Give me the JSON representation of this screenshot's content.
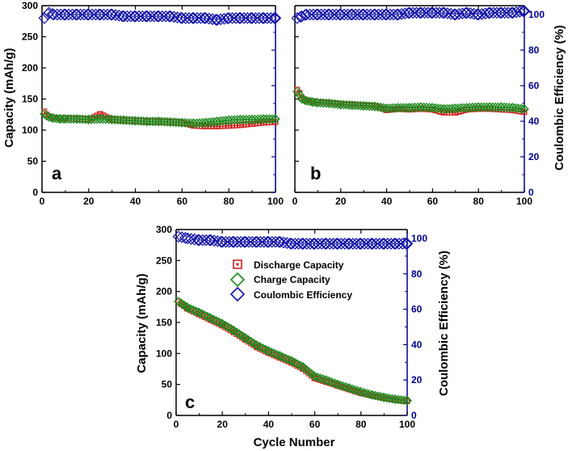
{
  "chart_data": [
    {
      "type": "scatter",
      "panel": "a",
      "xlabel": "",
      "ylabel": "Capacity (mAh/g)",
      "y2label": "",
      "xlim": [
        0,
        100
      ],
      "ylim": [
        0,
        300
      ],
      "y2lim": [
        0,
        105
      ],
      "xticks": [
        0,
        20,
        40,
        60,
        80,
        100
      ],
      "yticks": [
        0,
        50,
        100,
        150,
        200,
        250,
        300
      ],
      "y2ticks": [],
      "series": [
        {
          "name": "Discharge Capacity",
          "axis": "left",
          "color": "#d42020",
          "x": [
            1,
            2,
            3,
            5,
            8,
            10,
            15,
            20,
            25,
            30,
            35,
            40,
            45,
            50,
            55,
            60,
            65,
            70,
            75,
            80,
            85,
            90,
            95,
            100
          ],
          "values": [
            130,
            125,
            122,
            120,
            119,
            119,
            118,
            117,
            126,
            117,
            116,
            115,
            114,
            114,
            113,
            112,
            107,
            106,
            106,
            107,
            108,
            110,
            112,
            113
          ]
        },
        {
          "name": "Charge Capacity",
          "axis": "left",
          "color": "#1e8a1e",
          "x": [
            1,
            2,
            3,
            5,
            8,
            10,
            15,
            20,
            25,
            30,
            35,
            40,
            45,
            50,
            55,
            60,
            65,
            70,
            75,
            80,
            85,
            90,
            95,
            100
          ],
          "values": [
            126,
            123,
            121,
            119,
            118,
            118,
            118,
            117,
            118,
            117,
            116,
            115,
            114,
            114,
            113,
            112,
            111,
            112,
            114,
            116,
            117,
            117,
            118,
            118
          ]
        },
        {
          "name": "Coulombic Efficiency",
          "axis": "right",
          "color": "#1414a8",
          "x": [
            1,
            3,
            5,
            10,
            15,
            20,
            25,
            30,
            35,
            40,
            45,
            50,
            55,
            60,
            65,
            70,
            75,
            80,
            85,
            90,
            95,
            100
          ],
          "values": [
            98,
            101,
            100,
            100,
            100,
            100,
            100,
            100,
            99,
            99,
            99,
            99,
            99,
            98,
            98,
            98,
            97,
            98,
            98,
            98,
            98,
            98
          ]
        }
      ]
    },
    {
      "type": "scatter",
      "panel": "b",
      "xlabel": "",
      "ylabel": "",
      "y2label": "Coulombic Efficiency (%)",
      "xlim": [
        0,
        100
      ],
      "ylim": [
        0,
        300
      ],
      "y2lim": [
        0,
        105
      ],
      "xticks": [
        0,
        20,
        40,
        60,
        80,
        100
      ],
      "yticks": [],
      "y2ticks": [
        0,
        20,
        40,
        60,
        80,
        100
      ],
      "series": [
        {
          "name": "Discharge Capacity",
          "axis": "left",
          "color": "#d42020",
          "x": [
            1,
            2,
            3,
            5,
            8,
            10,
            15,
            20,
            25,
            30,
            35,
            40,
            45,
            50,
            55,
            60,
            65,
            70,
            75,
            80,
            85,
            90,
            95,
            100
          ],
          "values": [
            165,
            160,
            152,
            148,
            146,
            145,
            144,
            142,
            141,
            140,
            139,
            132,
            134,
            133,
            134,
            133,
            128,
            128,
            133,
            134,
            134,
            133,
            132,
            129
          ]
        },
        {
          "name": "Charge Capacity",
          "axis": "left",
          "color": "#1e8a1e",
          "x": [
            1,
            2,
            3,
            5,
            8,
            10,
            15,
            20,
            25,
            30,
            35,
            40,
            45,
            50,
            55,
            60,
            65,
            70,
            75,
            80,
            85,
            90,
            95,
            100
          ],
          "values": [
            162,
            157,
            150,
            147,
            145,
            144,
            143,
            141,
            140,
            139,
            138,
            135,
            136,
            136,
            137,
            136,
            134,
            135,
            136,
            137,
            137,
            137,
            136,
            134
          ]
        },
        {
          "name": "Coulombic Efficiency",
          "axis": "right",
          "color": "#1414a8",
          "x": [
            1,
            3,
            5,
            10,
            15,
            20,
            25,
            30,
            35,
            40,
            45,
            50,
            55,
            60,
            65,
            70,
            75,
            80,
            85,
            90,
            95,
            100
          ],
          "values": [
            98,
            99,
            100,
            100,
            100,
            100,
            100,
            100,
            100,
            100,
            100,
            101,
            101,
            101,
            101,
            100,
            101,
            100,
            101,
            101,
            101,
            102
          ]
        }
      ]
    },
    {
      "type": "scatter",
      "panel": "c",
      "xlabel": "Cycle Number",
      "ylabel": "Capacity (mAh/g)",
      "y2label": "Coulombic Efficiency (%)",
      "xlim": [
        0,
        100
      ],
      "ylim": [
        0,
        300
      ],
      "y2lim": [
        0,
        105
      ],
      "xticks": [
        0,
        20,
        40,
        60,
        80,
        100
      ],
      "yticks": [
        0,
        50,
        100,
        150,
        200,
        250,
        300
      ],
      "y2ticks": [
        0,
        20,
        40,
        60,
        80,
        100
      ],
      "series": [
        {
          "name": "Discharge Capacity",
          "axis": "left",
          "color": "#d42020",
          "x": [
            1,
            5,
            10,
            15,
            20,
            25,
            30,
            35,
            40,
            45,
            50,
            55,
            60,
            65,
            70,
            75,
            80,
            85,
            90,
            95,
            100
          ],
          "values": [
            183,
            172,
            163,
            154,
            145,
            134,
            122,
            110,
            101,
            93,
            85,
            75,
            60,
            54,
            48,
            42,
            36,
            32,
            28,
            25,
            23
          ]
        },
        {
          "name": "Charge Capacity",
          "axis": "left",
          "color": "#1e8a1e",
          "x": [
            1,
            5,
            10,
            15,
            20,
            25,
            30,
            35,
            40,
            45,
            50,
            55,
            60,
            65,
            70,
            75,
            80,
            85,
            90,
            95,
            100
          ],
          "values": [
            184,
            174,
            166,
            157,
            148,
            137,
            125,
            113,
            104,
            96,
            88,
            78,
            63,
            57,
            50,
            44,
            38,
            33,
            29,
            26,
            24
          ]
        },
        {
          "name": "Coulombic Efficiency",
          "axis": "right",
          "color": "#1414a8",
          "x": [
            1,
            5,
            10,
            15,
            20,
            25,
            30,
            35,
            40,
            45,
            50,
            55,
            60,
            65,
            70,
            75,
            80,
            85,
            90,
            95,
            100
          ],
          "values": [
            101,
            100,
            99,
            99,
            98,
            98,
            98,
            98,
            98,
            98,
            97,
            97,
            97,
            97,
            97,
            97,
            97,
            97,
            97,
            97,
            97
          ]
        }
      ]
    }
  ],
  "labels": {
    "panel_a": "a",
    "panel_b": "b",
    "panel_c": "c",
    "ylabel_left_top": "Capacity (mAh/g)",
    "ylabel_right_top": "Coulombic Efficiency (%)",
    "ylabel_left_bottom": "Capacity (mAh/g)",
    "ylabel_right_bottom": "Coulombic Efficiency (%)",
    "xlabel_bottom": "Cycle Number"
  },
  "legend": [
    {
      "label": "Discharge Capacity",
      "marker": "square",
      "color": "#d42020"
    },
    {
      "label": "Charge Capacity",
      "marker": "diamond",
      "color": "#1e8a1e"
    },
    {
      "label": "Coulombic Efficiency",
      "marker": "diamond",
      "color": "#1414a8"
    }
  ],
  "colors": {
    "axis_left": "#000000",
    "axis_right": "#00008b"
  }
}
